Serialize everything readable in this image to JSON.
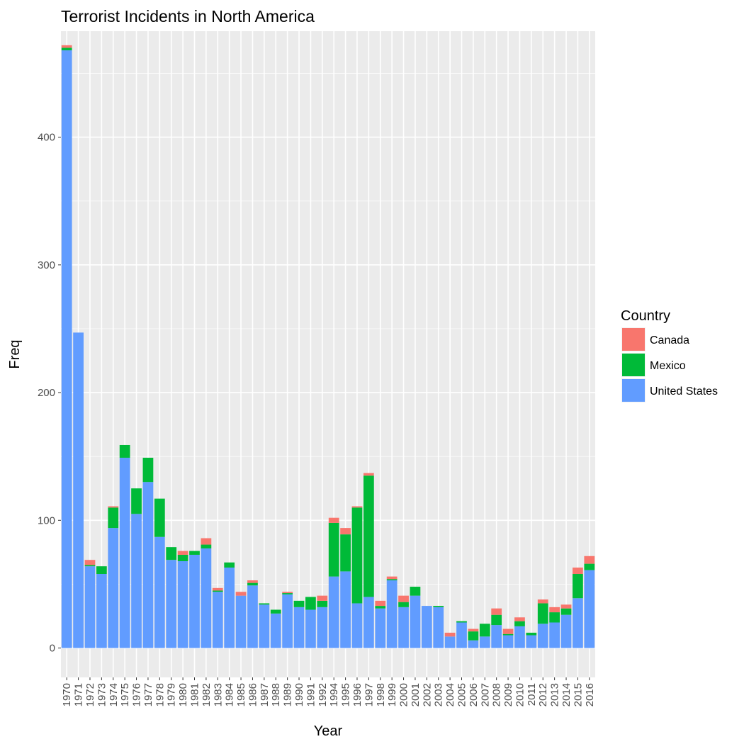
{
  "chart_data": {
    "type": "bar",
    "stacked": true,
    "title": "Terrorist Incidents in North America",
    "xlabel": "Year",
    "ylabel": "Freq",
    "ylim": [
      -23,
      483
    ],
    "yticks": [
      0,
      100,
      200,
      300,
      400
    ],
    "grid": true,
    "legend_position": "right",
    "legend_title": "Country",
    "categories": [
      "1970",
      "1971",
      "1972",
      "1973",
      "1974",
      "1975",
      "1976",
      "1977",
      "1978",
      "1979",
      "1980",
      "1981",
      "1982",
      "1983",
      "1984",
      "1985",
      "1986",
      "1987",
      "1988",
      "1989",
      "1990",
      "1991",
      "1992",
      "1994",
      "1995",
      "1996",
      "1997",
      "1998",
      "1999",
      "2000",
      "2001",
      "2002",
      "2003",
      "2004",
      "2005",
      "2006",
      "2007",
      "2008",
      "2009",
      "2010",
      "2011",
      "2012",
      "2013",
      "2014",
      "2015",
      "2016"
    ],
    "series": [
      {
        "name": "United States",
        "color": "#619CFF",
        "values": [
          468,
          247,
          64,
          58,
          94,
          149,
          105,
          130,
          87,
          69,
          68,
          73,
          78,
          44,
          63,
          41,
          49,
          34,
          27,
          42,
          32,
          30,
          32,
          56,
          60,
          35,
          40,
          31,
          53,
          32,
          41,
          33,
          32,
          9,
          20,
          6,
          9,
          18,
          10,
          17,
          10,
          19,
          20,
          26,
          39,
          61
        ]
      },
      {
        "name": "Mexico",
        "color": "#00BA38",
        "values": [
          2,
          0,
          1,
          6,
          16,
          10,
          20,
          19,
          30,
          10,
          5,
          3,
          3,
          1,
          4,
          0,
          2,
          1,
          3,
          1,
          5,
          10,
          5,
          42,
          29,
          75,
          95,
          2,
          1,
          4,
          7,
          0,
          1,
          0,
          1,
          7,
          10,
          8,
          1,
          4,
          2,
          16,
          8,
          5,
          19,
          5
        ]
      },
      {
        "name": "Canada",
        "color": "#F8766D",
        "values": [
          2,
          0,
          4,
          0,
          1,
          0,
          0,
          0,
          0,
          0,
          3,
          0,
          5,
          2,
          0,
          3,
          2,
          0,
          0,
          1,
          0,
          0,
          4,
          4,
          5,
          1,
          2,
          4,
          2,
          5,
          0,
          0,
          0,
          3,
          0,
          2,
          0,
          5,
          4,
          3,
          0,
          3,
          4,
          3,
          5,
          6
        ]
      }
    ]
  }
}
